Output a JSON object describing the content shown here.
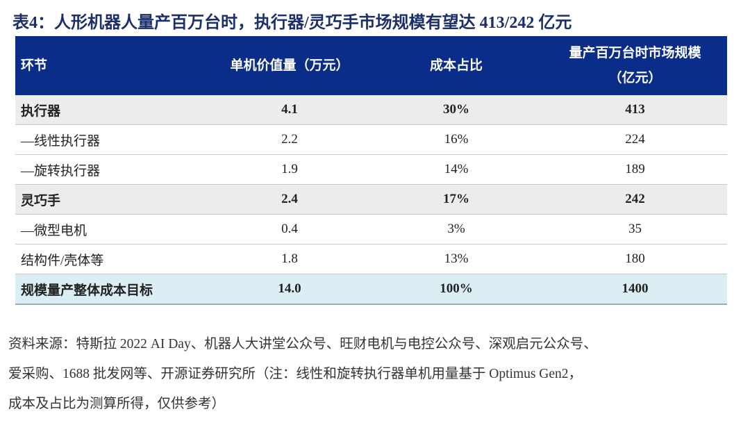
{
  "title": "表4：人形机器人量产百万台时，执行器/灵巧手市场规模有望达 413/242 亿元",
  "table": {
    "header": [
      "环节",
      "单机价值量（万元）",
      "成本占比",
      [
        "量产百万台时市场规模",
        "（亿元）"
      ]
    ],
    "rows": [
      [
        "执行器",
        "4.1",
        "30%",
        "413"
      ],
      [
        "—线性执行器",
        "2.2",
        "16%",
        "224"
      ],
      [
        "—旋转执行器",
        "1.9",
        "14%",
        "189"
      ],
      [
        "灵巧手",
        "2.4",
        "17%",
        "242"
      ],
      [
        "—微型电机",
        "0.4",
        "3%",
        "35"
      ],
      [
        "结构件/壳体等",
        "1.8",
        "13%",
        "180"
      ],
      [
        "规模量产整体成本目标",
        "14.0",
        "100%",
        "1400"
      ]
    ]
  },
  "note": [
    "资料来源：特斯拉 2022 AI Day、机器人大讲堂公众号、旺财电机与电控公众号、深观启元公众号、",
    "爱采购、1688 批发网等、开源证券研究所（注：线性和旋转执行器单机用量基于 Optimus Gen2，",
    "成本及占比为测算所得，仅供参考）"
  ]
}
